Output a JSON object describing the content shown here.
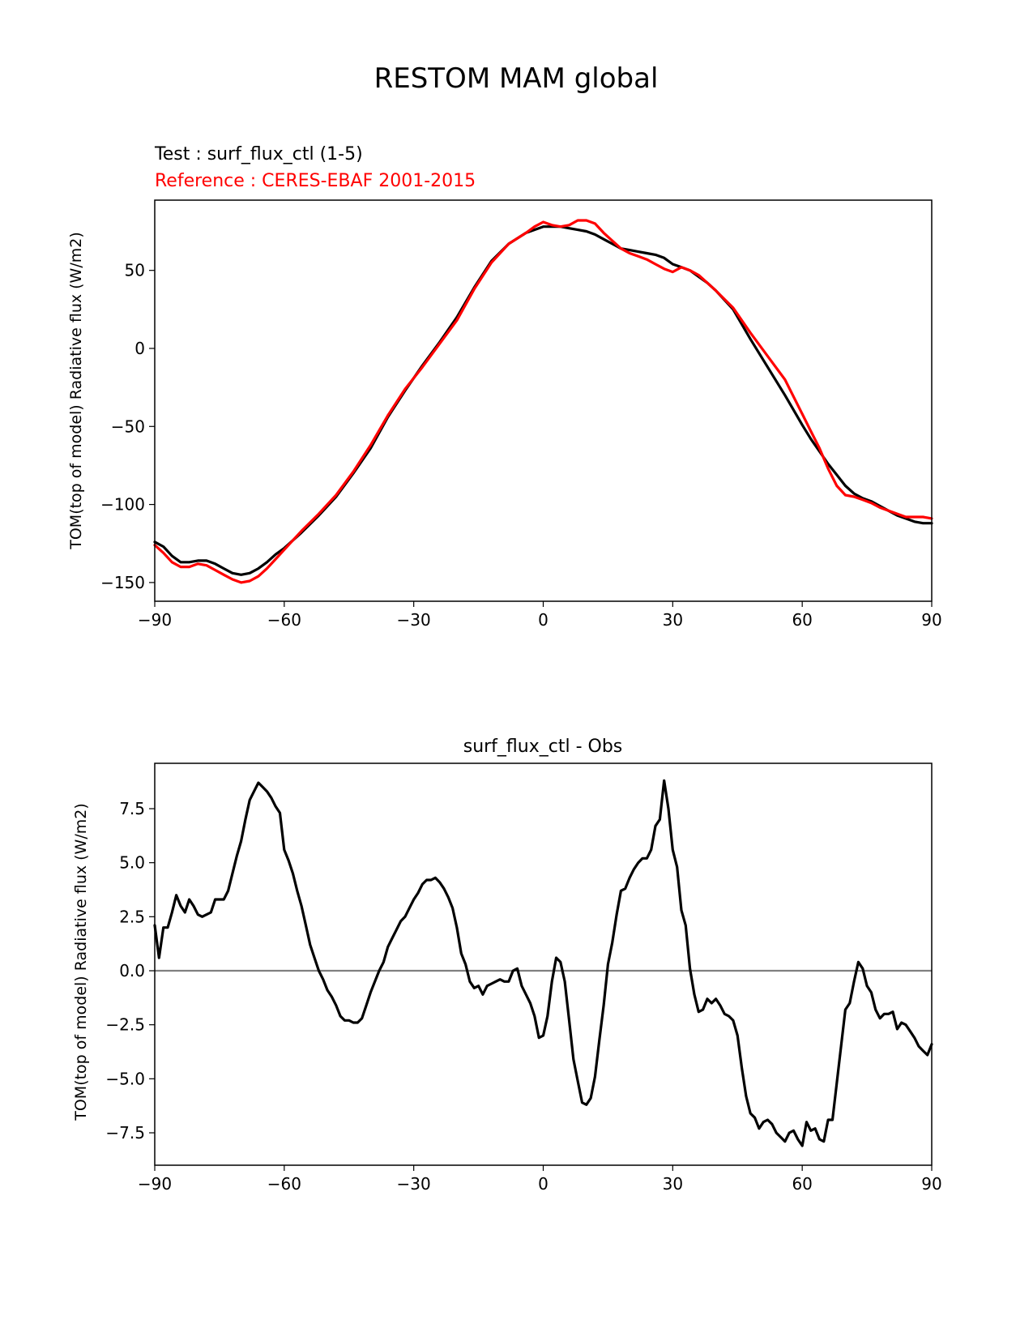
{
  "figure": {
    "suptitle": "RESTOM MAM global"
  },
  "colors": {
    "test": "#000000",
    "reference": "#ff0000",
    "zero_line": "#808080"
  },
  "chart_data": [
    {
      "type": "line",
      "title_test": "Test : surf_flux_ctl (1-5)",
      "title_reference": "Reference : CERES-EBAF 2001-2015",
      "xlabel": "",
      "ylabel": "TOM(top of model) Radiative flux (W/m2)",
      "xlim": [
        -90,
        90
      ],
      "ylim": [
        -162,
        95
      ],
      "xticks": [
        -90,
        -60,
        -30,
        0,
        30,
        60,
        90
      ],
      "xtick_labels": [
        "−90",
        "−60",
        "−30",
        "0",
        "30",
        "60",
        "90"
      ],
      "yticks": [
        -150,
        -100,
        -50,
        0,
        50
      ],
      "ytick_labels": [
        "−150",
        "−100",
        "−50",
        "0",
        "50"
      ],
      "series": [
        {
          "key": "test",
          "x": [
            -90,
            -88,
            -86,
            -84,
            -82,
            -80,
            -78,
            -76,
            -74,
            -72,
            -70,
            -68,
            -66,
            -64,
            -62,
            -60,
            -56,
            -52,
            -48,
            -44,
            -40,
            -36,
            -32,
            -28,
            -24,
            -20,
            -16,
            -12,
            -8,
            -4,
            0,
            2,
            4,
            6,
            8,
            10,
            12,
            14,
            16,
            18,
            20,
            22,
            24,
            26,
            28,
            30,
            32,
            34,
            36,
            38,
            40,
            44,
            48,
            52,
            56,
            60,
            62,
            64,
            66,
            68,
            70,
            72,
            74,
            76,
            78,
            80,
            82,
            84,
            86,
            88,
            90
          ],
          "y": [
            -124,
            -127,
            -133,
            -137,
            -137,
            -136,
            -136,
            -138,
            -141,
            -144,
            -145,
            -144,
            -141,
            -137,
            -132,
            -128,
            -118,
            -107,
            -95,
            -80,
            -64,
            -44,
            -27,
            -11,
            4,
            20,
            39,
            56,
            67,
            74,
            78,
            78,
            78,
            77,
            76,
            75,
            73,
            70,
            67,
            64,
            63,
            62,
            61,
            60,
            58,
            54,
            52,
            50,
            46,
            42,
            37,
            25,
            6,
            -12,
            -30,
            -49,
            -58,
            -66,
            -74,
            -81,
            -88,
            -93,
            -96,
            -98,
            -101,
            -104,
            -107,
            -109,
            -111,
            -112,
            -112
          ]
        },
        {
          "key": "reference",
          "x": [
            -90,
            -88,
            -86,
            -84,
            -82,
            -80,
            -78,
            -76,
            -74,
            -72,
            -70,
            -68,
            -66,
            -64,
            -62,
            -60,
            -56,
            -52,
            -48,
            -44,
            -40,
            -36,
            -32,
            -28,
            -24,
            -20,
            -16,
            -12,
            -8,
            -4,
            -2,
            0,
            2,
            4,
            6,
            8,
            10,
            12,
            14,
            16,
            18,
            20,
            22,
            24,
            26,
            28,
            30,
            32,
            34,
            36,
            38,
            40,
            44,
            48,
            52,
            56,
            60,
            62,
            64,
            66,
            68,
            70,
            72,
            74,
            76,
            78,
            80,
            82,
            84,
            86,
            88,
            90
          ],
          "y": [
            -126,
            -131,
            -137,
            -140,
            -140,
            -138,
            -139,
            -142,
            -145,
            -148,
            -150,
            -149,
            -146,
            -141,
            -135,
            -129,
            -117,
            -106,
            -94,
            -79,
            -62,
            -43,
            -26,
            -12,
            3,
            18,
            38,
            55,
            67,
            74,
            78,
            81,
            79,
            78,
            79,
            82,
            82,
            80,
            74,
            69,
            64,
            61,
            59,
            57,
            54,
            51,
            49,
            52,
            50,
            47,
            42,
            37,
            26,
            10,
            -5,
            -20,
            -42,
            -53,
            -64,
            -77,
            -88,
            -94,
            -95,
            -97,
            -99,
            -102,
            -104,
            -106,
            -108,
            -108,
            -108,
            -109
          ]
        }
      ]
    },
    {
      "type": "line",
      "title": "surf_flux_ctl - Obs",
      "xlabel": "",
      "ylabel": "TOM(top of model) Radiative flux (W/m2)",
      "xlim": [
        -90,
        90
      ],
      "ylim": [
        -9,
        9.6
      ],
      "xticks": [
        -90,
        -60,
        -30,
        0,
        30,
        60,
        90
      ],
      "xtick_labels": [
        "−90",
        "−60",
        "−30",
        "0",
        "30",
        "60",
        "90"
      ],
      "yticks": [
        -7.5,
        -5.0,
        -2.5,
        0.0,
        2.5,
        5.0,
        7.5
      ],
      "ytick_labels": [
        "−7.5",
        "−5.0",
        "−2.5",
        "0.0",
        "2.5",
        "5.0",
        "7.5"
      ],
      "hline": 0,
      "series": [
        {
          "key": "test",
          "x": [
            -90,
            -89,
            -88,
            -87,
            -86,
            -85,
            -84,
            -83,
            -82,
            -81,
            -80,
            -79,
            -78,
            -77,
            -76,
            -75,
            -74,
            -73,
            -72,
            -71,
            -70,
            -69,
            -68,
            -67,
            -66,
            -65,
            -64,
            -63,
            -62,
            -61,
            -60,
            -59,
            -58,
            -57,
            -56,
            -55,
            -54,
            -53,
            -52,
            -51,
            -50,
            -49,
            -48,
            -47,
            -46,
            -45,
            -44,
            -43,
            -42,
            -41,
            -40,
            -39,
            -38,
            -37,
            -36,
            -35,
            -34,
            -33,
            -32,
            -31,
            -30,
            -29,
            -28,
            -27,
            -26,
            -25,
            -24,
            -23,
            -22,
            -21,
            -20,
            -19,
            -18,
            -17,
            -16,
            -15,
            -14,
            -13,
            -12,
            -11,
            -10,
            -9,
            -8,
            -7,
            -6,
            -5,
            -4,
            -3,
            -2,
            -1,
            0,
            1,
            2,
            3,
            4,
            5,
            6,
            7,
            8,
            9,
            10,
            11,
            12,
            13,
            14,
            15,
            16,
            17,
            18,
            19,
            20,
            21,
            22,
            23,
            24,
            25,
            26,
            27,
            28,
            29,
            30,
            31,
            32,
            33,
            34,
            35,
            36,
            37,
            38,
            39,
            40,
            41,
            42,
            43,
            44,
            45,
            46,
            47,
            48,
            49,
            50,
            51,
            52,
            53,
            54,
            55,
            56,
            57,
            58,
            59,
            60,
            61,
            62,
            63,
            64,
            65,
            66,
            67,
            68,
            69,
            70,
            71,
            72,
            73,
            74,
            75,
            76,
            77,
            78,
            79,
            80,
            81,
            82,
            83,
            84,
            85,
            86,
            87,
            88,
            89,
            90
          ],
          "y": [
            2.1,
            0.6,
            2.0,
            2.0,
            2.7,
            3.5,
            3.0,
            2.7,
            3.3,
            3.0,
            2.6,
            2.5,
            2.6,
            2.7,
            3.3,
            3.3,
            3.3,
            3.7,
            4.5,
            5.3,
            6.0,
            7.0,
            7.9,
            8.3,
            8.7,
            8.5,
            8.3,
            8.0,
            7.6,
            7.3,
            5.6,
            5.1,
            4.5,
            3.7,
            3.0,
            2.1,
            1.2,
            0.6,
            0.0,
            -0.4,
            -0.9,
            -1.2,
            -1.6,
            -2.1,
            -2.3,
            -2.3,
            -2.4,
            -2.4,
            -2.2,
            -1.6,
            -1.0,
            -0.5,
            0.0,
            0.4,
            1.1,
            1.5,
            1.9,
            2.3,
            2.5,
            2.9,
            3.3,
            3.6,
            4.0,
            4.2,
            4.2,
            4.3,
            4.1,
            3.8,
            3.4,
            2.9,
            2.0,
            0.8,
            0.3,
            -0.5,
            -0.8,
            -0.7,
            -1.1,
            -0.7,
            -0.6,
            -0.5,
            -0.4,
            -0.5,
            -0.5,
            0.0,
            0.1,
            -0.7,
            -1.1,
            -1.5,
            -2.1,
            -3.1,
            -3.0,
            -2.1,
            -0.5,
            0.6,
            0.4,
            -0.5,
            -2.3,
            -4.1,
            -5.1,
            -6.1,
            -6.2,
            -5.9,
            -4.9,
            -3.2,
            -1.6,
            0.3,
            1.3,
            2.6,
            3.7,
            3.8,
            4.3,
            4.7,
            5.0,
            5.2,
            5.2,
            5.6,
            6.7,
            7.0,
            8.8,
            7.5,
            5.6,
            4.8,
            2.8,
            2.1,
            0.1,
            -1.1,
            -1.9,
            -1.8,
            -1.3,
            -1.5,
            -1.3,
            -1.6,
            -2.0,
            -2.1,
            -2.3,
            -3.0,
            -4.5,
            -5.8,
            -6.6,
            -6.8,
            -7.3,
            -7.0,
            -6.9,
            -7.1,
            -7.5,
            -7.7,
            -7.9,
            -7.5,
            -7.4,
            -7.8,
            -8.1,
            -7.0,
            -7.4,
            -7.3,
            -7.8,
            -7.9,
            -6.9,
            -6.9,
            -5.2,
            -3.5,
            -1.8,
            -1.5,
            -0.5,
            0.4,
            0.1,
            -0.7,
            -1.0,
            -1.8,
            -2.2,
            -2.0,
            -2.0,
            -1.9,
            -2.7,
            -2.4,
            -2.5,
            -2.8,
            -3.1,
            -3.5,
            -3.7,
            -3.9,
            -3.4
          ]
        }
      ]
    }
  ]
}
